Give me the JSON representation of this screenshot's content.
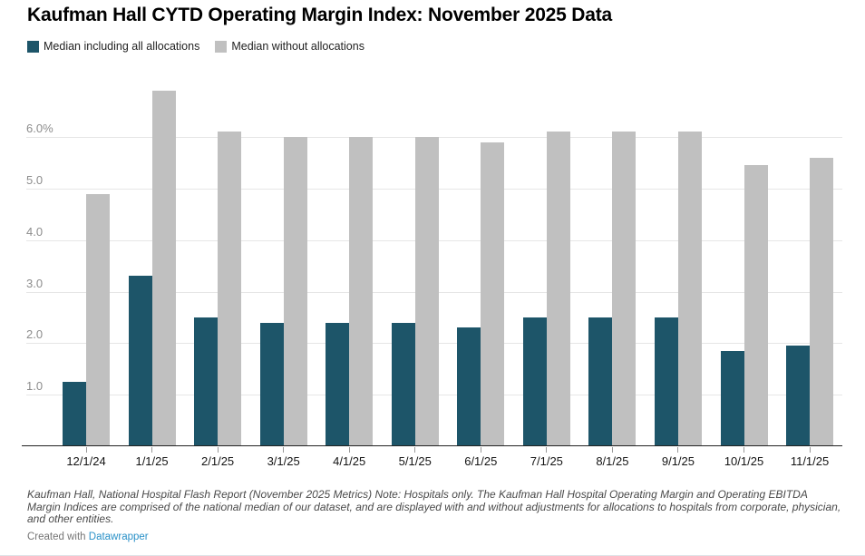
{
  "title": "Kaufman Hall CYTD Operating Margin Index: November 2025 Data",
  "legend": [
    {
      "label": "Median including all allocations",
      "color": "#1d5569"
    },
    {
      "label": "Median without allocations",
      "color": "#c0c0c0"
    }
  ],
  "chart_data": {
    "type": "bar",
    "title": "Kaufman Hall CYTD Operating Margin Index: November 2025 Data",
    "categories": [
      "12/1/24",
      "1/1/25",
      "2/1/25",
      "3/1/25",
      "4/1/25",
      "5/1/25",
      "6/1/25",
      "7/1/25",
      "8/1/25",
      "9/1/25",
      "10/1/25",
      "11/1/25"
    ],
    "series": [
      {
        "name": "Median including all allocations",
        "color": "#1d5569",
        "values": [
          1.25,
          3.3,
          2.5,
          2.4,
          2.4,
          2.4,
          2.3,
          2.5,
          2.5,
          2.5,
          1.85,
          1.95
        ]
      },
      {
        "name": "Median without allocations",
        "color": "#c0c0c0",
        "values": [
          4.9,
          6.9,
          6.1,
          6.0,
          6.0,
          6.0,
          5.9,
          6.1,
          6.1,
          6.1,
          5.45,
          5.6
        ]
      }
    ],
    "xlabel": "",
    "ylabel": "",
    "y_tick_values": [
      1,
      2,
      3,
      4,
      5,
      6
    ],
    "y_tick_labels": [
      "1.0",
      "2.0",
      "3.0",
      "4.0",
      "5.0",
      "6.0%"
    ],
    "ylim": [
      0,
      7.05
    ],
    "grid": true,
    "legend_position": "top-left",
    "unit": "percent"
  },
  "footer": {
    "note": "Kaufman Hall, National Hospital Flash Report (November 2025 Metrics) Note: Hospitals only. The Kaufman Hall Hospital Operating Margin and Operating EBITDA Margin Indices are comprised of the national median of our dataset, and are displayed with and without adjustments for allocations to hospitals from corporate, physician, and other entities.",
    "credit_prefix": "Created with ",
    "credit_link": "Datawrapper"
  }
}
